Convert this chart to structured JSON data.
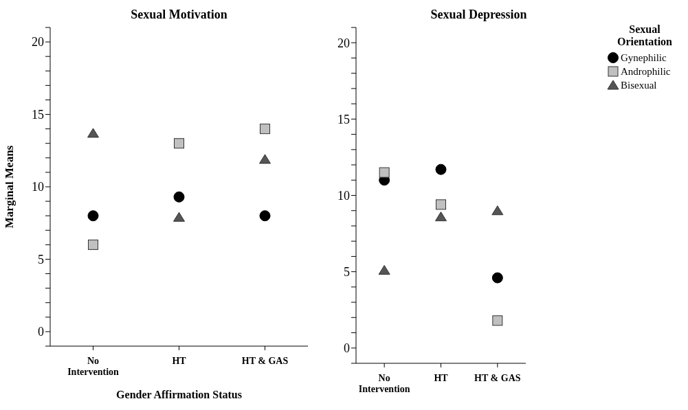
{
  "chart_data": [
    {
      "type": "scatter",
      "title": "Sexual Motivation",
      "xlabel": "Gender Affirmation Status",
      "ylabel": "Marginal Means",
      "categories": [
        "No Intervention",
        "HT",
        "HT & GAS"
      ],
      "series": [
        {
          "color": "#000000",
          "marker": "circle",
          "values": [
            8.0,
            9.3,
            8.0
          ]
        },
        {
          "color": "#c0c0c0",
          "marker": "square",
          "values": [
            6.0,
            13.0,
            14.0
          ]
        },
        {
          "color": "#555555",
          "marker": "triangle",
          "values": [
            13.7,
            7.9,
            11.9
          ]
        }
      ],
      "ylim": [
        -1,
        21
      ],
      "yticks": [
        {
          "value": -1,
          "label": null
        },
        0,
        {
          "value": 1,
          "label": null
        },
        {
          "value": 2,
          "label": null
        },
        {
          "value": 3,
          "label": null
        },
        {
          "value": 4,
          "label": null
        },
        5,
        {
          "value": 6,
          "label": null
        },
        {
          "value": 7,
          "label": null
        },
        {
          "value": 8,
          "label": null
        },
        {
          "value": 9,
          "label": null
        },
        10,
        {
          "value": 11,
          "label": null
        },
        {
          "value": 12,
          "label": null
        },
        {
          "value": 13,
          "label": null
        },
        {
          "value": 14,
          "label": null
        },
        15,
        {
          "value": 16,
          "label": null
        },
        {
          "value": 17,
          "label": null
        },
        {
          "value": 18,
          "label": null
        },
        {
          "value": 19,
          "label": null
        },
        20,
        {
          "value": 21,
          "label": null
        }
      ],
      "grid": false
    },
    {
      "type": "scatter",
      "title": "Sexual Depression",
      "legend_title": "Sexual Orientation",
      "legend": "top right",
      "categories": [
        "No Intervention",
        "HT",
        "HT & GAS"
      ],
      "series": [
        {
          "name": "Gynephilic",
          "color": "#000000",
          "marker": "circle",
          "values": [
            11.0,
            11.7,
            4.6
          ]
        },
        {
          "name": "Androphilic",
          "color": "#c0c0c0",
          "marker": "square",
          "values": [
            11.5,
            9.4,
            1.8
          ]
        },
        {
          "name": "Bisexual",
          "color": "#555555",
          "marker": "triangle",
          "values": [
            5.1,
            8.6,
            9.0
          ]
        }
      ],
      "ylim": [
        -1,
        21
      ],
      "yticks": [
        {
          "value": -1,
          "label": null
        },
        0,
        {
          "value": 1,
          "label": null
        },
        {
          "value": 2,
          "label": null
        },
        {
          "value": 3,
          "label": null
        },
        {
          "value": 4,
          "label": null
        },
        5,
        {
          "value": 6,
          "label": null
        },
        {
          "value": 7,
          "label": null
        },
        {
          "value": 8,
          "label": null
        },
        {
          "value": 9,
          "label": null
        },
        10,
        {
          "value": 11,
          "label": null
        },
        {
          "value": 12,
          "label": null
        },
        {
          "value": 13,
          "label": null
        },
        {
          "value": 14,
          "label": null
        },
        15,
        {
          "value": 16,
          "label": null
        },
        {
          "value": 17,
          "label": null
        },
        {
          "value": 18,
          "label": null
        },
        {
          "value": 19,
          "label": null
        },
        20,
        {
          "value": 21,
          "label": null
        }
      ],
      "grid": false
    }
  ]
}
